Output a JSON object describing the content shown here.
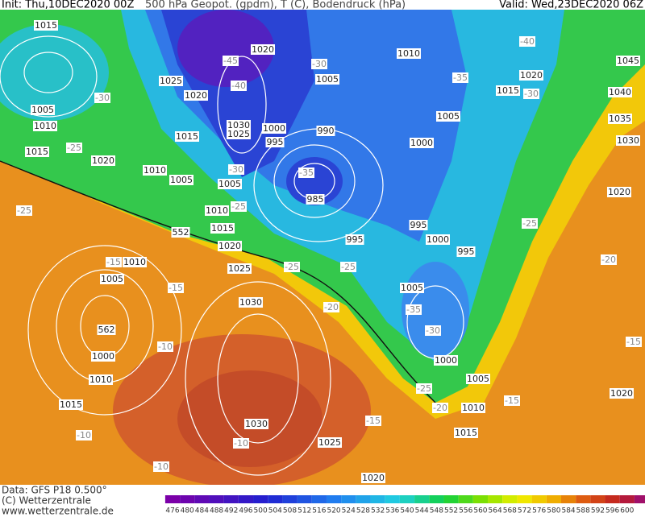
{
  "header": {
    "init": "Init: Thu,10DEC2020 00Z",
    "title": "500 hPa Geopot. (gpdm), T (C), Bodendruck (hPa)",
    "valid": "Valid: Wed,23DEC2020 06Z"
  },
  "isobar_labels": [
    1015,
    1020,
    -45,
    -30,
    1010,
    -40,
    1045,
    1025,
    -40,
    1005,
    -35,
    1020,
    -30,
    1020,
    1015,
    -30,
    1040,
    1005,
    1030,
    1025,
    1000,
    990,
    1005,
    1035,
    1010,
    1015,
    995,
    1000,
    1030,
    1015,
    -25,
    1020,
    -30,
    -35,
    1010,
    1005,
    1005,
    985,
    1020,
    -25,
    1010,
    -25,
    995,
    -25,
    552,
    1015,
    1000,
    1020,
    995,
    995,
    -20,
    -15,
    1010,
    -25,
    -25,
    1025,
    1005,
    -15,
    1005,
    1030,
    -20,
    -35,
    562,
    -30,
    -10,
    -15,
    1000,
    1000,
    1010,
    1005,
    -25,
    -15,
    1015,
    -20,
    1010,
    1020,
    1030,
    -15,
    -10,
    1015,
    -10,
    1025,
    -10,
    1020
  ],
  "footer": {
    "data": "Data: GFS P18 0.500°",
    "copyright": "(C) Wetterzentrale",
    "website": "www.wetterzentrale.de"
  },
  "colorbar": {
    "labels": [
      476,
      480,
      484,
      488,
      492,
      496,
      500,
      504,
      508,
      512,
      516,
      520,
      524,
      528,
      532,
      536,
      540,
      544,
      548,
      552,
      556,
      560,
      564,
      568,
      572,
      576,
      580,
      584,
      588,
      592,
      596,
      600
    ]
  }
}
